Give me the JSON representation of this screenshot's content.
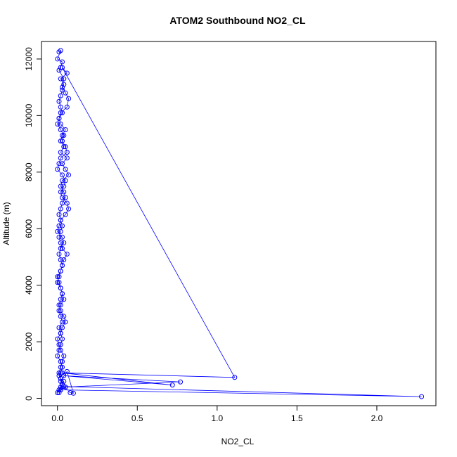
{
  "chart_data": {
    "type": "line",
    "title": "ATOM2 Southbound NO2_CL",
    "xlabel": "NO2_CL",
    "ylabel": "Altitude (m)",
    "xlim": [
      -0.1,
      2.37
    ],
    "ylim": [
      -260,
      12620
    ],
    "xticks": [
      0.0,
      0.5,
      1.0,
      1.5,
      2.0
    ],
    "xtick_labels": [
      "0.0",
      "0.5",
      "1.0",
      "1.5",
      "2.0"
    ],
    "yticks": [
      0,
      2000,
      4000,
      6000,
      8000,
      10000,
      12000
    ],
    "ytick_labels": [
      "0",
      "2000",
      "4000",
      "6000",
      "8000",
      "10000",
      "12000"
    ],
    "grid": false,
    "markers": "open-circle",
    "series": [
      {
        "color": "#0000ff",
        "x": [
          0.01,
          0.02,
          0.0,
          0.03,
          0.02,
          0.01,
          0.04,
          0.03,
          0.05,
          0.07,
          0.06,
          0.02,
          0.01,
          0.0,
          0.02,
          0.04,
          0.03,
          0.05,
          0.06,
          0.02,
          0.01,
          0.0,
          0.03,
          0.05,
          0.04,
          0.02,
          0.03,
          0.06,
          0.07,
          0.05,
          0.02,
          0.01,
          0.0,
          0.03,
          0.04,
          0.02,
          0.01,
          0.02,
          0.03,
          0.02,
          0.01,
          0.0,
          0.02,
          0.03,
          0.04,
          0.02,
          0.01,
          0.02,
          0.03,
          0.01,
          0.02,
          0.03,
          0.02,
          0.01,
          0.0,
          0.02,
          0.03,
          0.02,
          0.01,
          0.02,
          0.04,
          0.03,
          0.02,
          0.01,
          0.0,
          0.02,
          0.03,
          0.02,
          0.01,
          0.02,
          0.03,
          0.04,
          0.02,
          0.01,
          0.0,
          0.02,
          0.03,
          0.05,
          0.04,
          0.02,
          0.01,
          0.02,
          0.03,
          0.02,
          0.01,
          0.0,
          0.02,
          0.03,
          0.04,
          0.06,
          0.03,
          0.02,
          0.01,
          0.02,
          0.03,
          0.02,
          0.01,
          0.02,
          0.03,
          0.05,
          0.04,
          0.02,
          0.03,
          0.07,
          0.05,
          0.03,
          0.06,
          0.02,
          0.04,
          0.02,
          0.03,
          0.05,
          0.02,
          0.01,
          0.03,
          0.02,
          0.01,
          0.02,
          0.03,
          0.04,
          0.02,
          0.06,
          0.03,
          1.11,
          0.03,
          0.72,
          0.04,
          0.77,
          0.05,
          0.02,
          2.28,
          0.04,
          0.08,
          0.1,
          0.06,
          0.02,
          0.01
        ],
        "y": [
          12250,
          12300,
          12000,
          11900,
          11700,
          11600,
          11300,
          11000,
          10800,
          10600,
          10300,
          10100,
          9900,
          9700,
          9500,
          9300,
          9100,
          8900,
          8700,
          8500,
          8300,
          8100,
          7900,
          7700,
          7500,
          7300,
          7100,
          6900,
          6700,
          6500,
          6300,
          6100,
          5900,
          5700,
          5500,
          5300,
          5100,
          4900,
          4700,
          4500,
          4300,
          4100,
          3900,
          3700,
          3500,
          3300,
          3100,
          2900,
          2700,
          2500,
          2300,
          2100,
          1900,
          1700,
          1500,
          1300,
          1100,
          900,
          800,
          700,
          600,
          500,
          400,
          300,
          200,
          300,
          500,
          700,
          900,
          1100,
          1300,
          1500,
          1700,
          1900,
          2100,
          2300,
          2500,
          2700,
          2900,
          3100,
          3300,
          3500,
          3700,
          3900,
          4100,
          4300,
          4500,
          4700,
          4900,
          5100,
          5300,
          5500,
          5700,
          5900,
          6100,
          6300,
          6500,
          6700,
          6900,
          7100,
          7300,
          7500,
          7700,
          7900,
          8100,
          8300,
          8500,
          8700,
          8900,
          9100,
          9300,
          9500,
          9700,
          9900,
          10100,
          10300,
          10500,
          10700,
          10900,
          11100,
          11300,
          11500,
          11700,
          740,
          900,
          470,
          800,
          580,
          400,
          300,
          60,
          420,
          200,
          180,
          950,
          600,
          200
        ]
      }
    ]
  }
}
